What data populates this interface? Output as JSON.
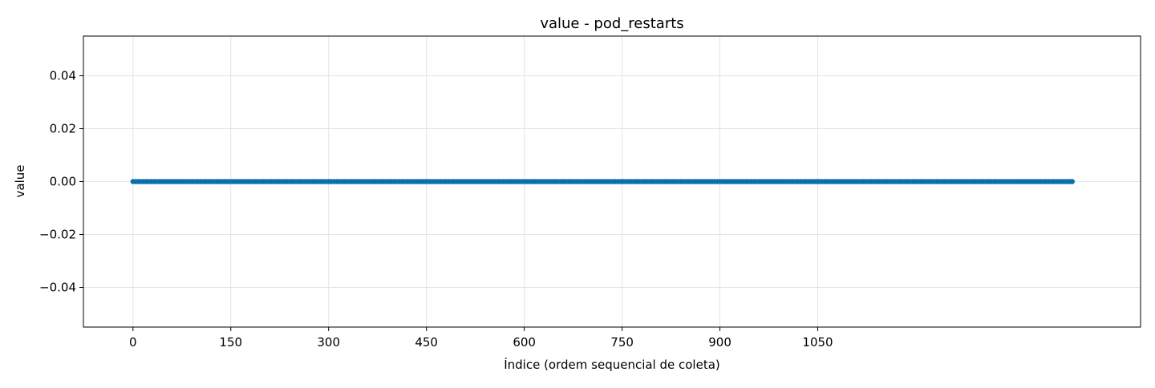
{
  "chart_data": {
    "type": "line",
    "title": "value - pod_restarts",
    "xlabel": "Índice (ordem sequencial de coleta)",
    "ylabel": "value",
    "xlim": [
      -76,
      1545
    ],
    "ylim": [
      -0.055,
      0.055
    ],
    "x_ticks": [
      0,
      150,
      300,
      450,
      600,
      750,
      900,
      1050
    ],
    "y_ticks": [
      -0.04,
      -0.02,
      0.0,
      0.02,
      0.04
    ],
    "y_tick_labels": [
      "−0.04",
      "−0.02",
      "0.00",
      "0.02",
      "0.04"
    ],
    "grid": true,
    "series": [
      {
        "color": "#0a6fac",
        "marker": "dot",
        "x_start": 0,
        "x_end": 1440,
        "count": 1441,
        "constant_value": 0.0
      }
    ]
  }
}
